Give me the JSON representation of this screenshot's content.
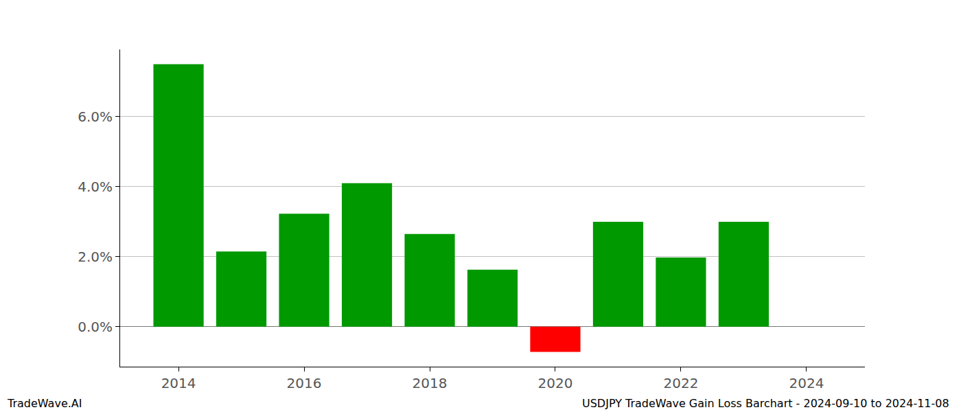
{
  "chart_data": {
    "type": "bar",
    "title": "USDJPY TradeWave Gain Loss Barchart - 2024-09-10 to 2024-11-08",
    "annotations": [
      "TradeWave.AI"
    ],
    "x": [
      2014,
      2015,
      2016,
      2017,
      2018,
      2019,
      2020,
      2021,
      2022,
      2023
    ],
    "values": [
      7.5,
      2.15,
      3.23,
      4.1,
      2.65,
      1.63,
      -0.72,
      3.0,
      1.98,
      3.0
    ],
    "colors": [
      "#009900",
      "#009900",
      "#009900",
      "#009900",
      "#009900",
      "#009900",
      "#ff0000",
      "#009900",
      "#009900",
      "#009900"
    ],
    "xlim": [
      2013.07,
      2024.93
    ],
    "xticks": [
      2014,
      2016,
      2018,
      2020,
      2022,
      2024
    ],
    "ylim": [
      -1.14,
      7.92
    ],
    "yticks": [
      {
        "value": 0,
        "label": "0.0%"
      },
      {
        "value": 2,
        "label": "2.0%"
      },
      {
        "value": 4,
        "label": "4.0%"
      },
      {
        "value": 6,
        "label": "6.0%"
      }
    ],
    "grid": true
  }
}
